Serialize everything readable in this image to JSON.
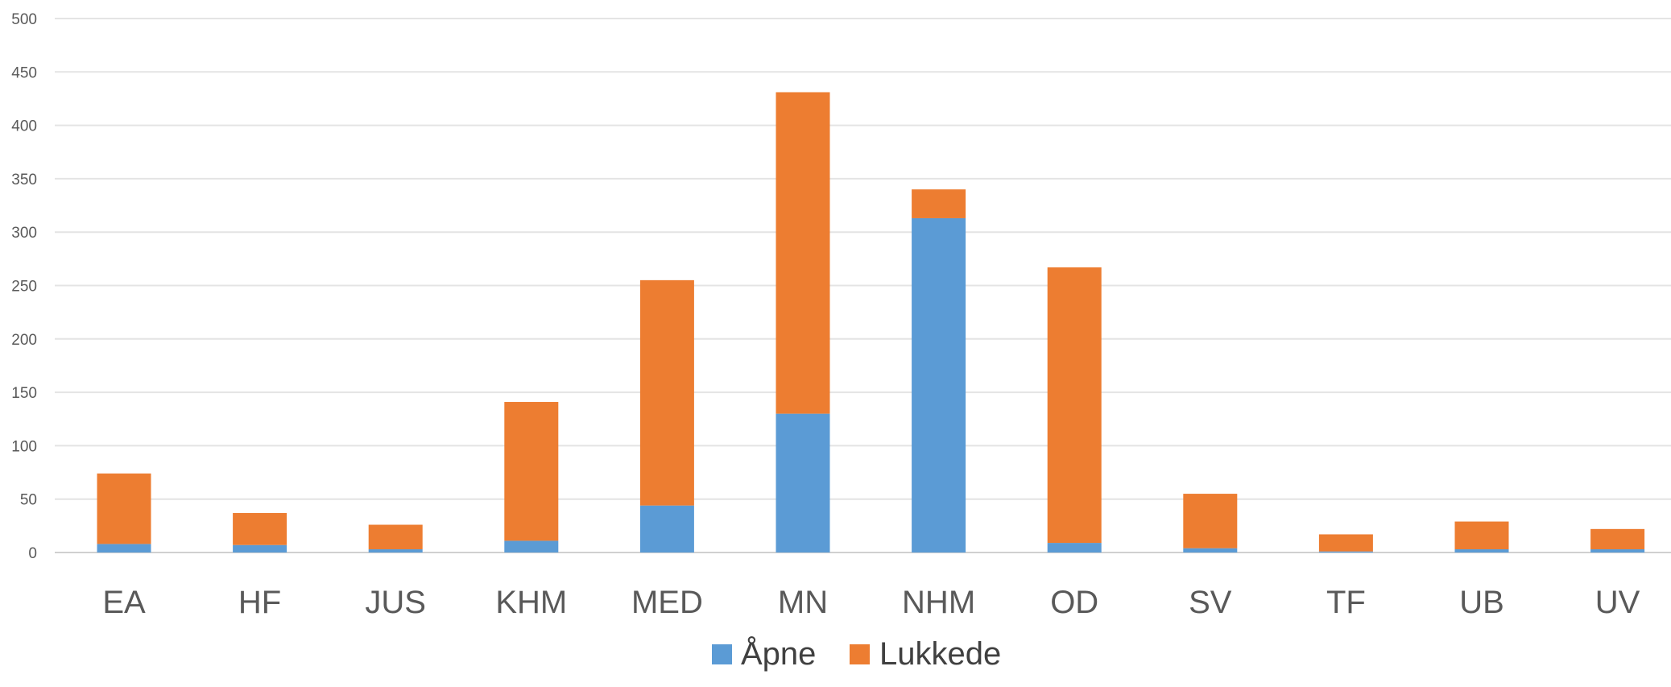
{
  "chart_data": {
    "type": "bar",
    "stacked": true,
    "categories": [
      "EA",
      "HF",
      "JUS",
      "KHM",
      "MED",
      "MN",
      "NHM",
      "OD",
      "SV",
      "TF",
      "UB",
      "UV"
    ],
    "series": [
      {
        "name": "Åpne",
        "color": "#5B9BD5",
        "values": [
          8,
          7,
          3,
          11,
          44,
          130,
          313,
          9,
          4,
          1,
          3,
          3
        ]
      },
      {
        "name": "Lukkede",
        "color": "#ED7D31",
        "values": [
          66,
          30,
          23,
          130,
          211,
          301,
          27,
          258,
          51,
          16,
          26,
          19
        ]
      }
    ],
    "ylim": [
      0,
      500
    ],
    "yticks": [
      0,
      50,
      100,
      150,
      200,
      250,
      300,
      350,
      400,
      450,
      500
    ],
    "grid": true,
    "legend_position": "bottom"
  }
}
